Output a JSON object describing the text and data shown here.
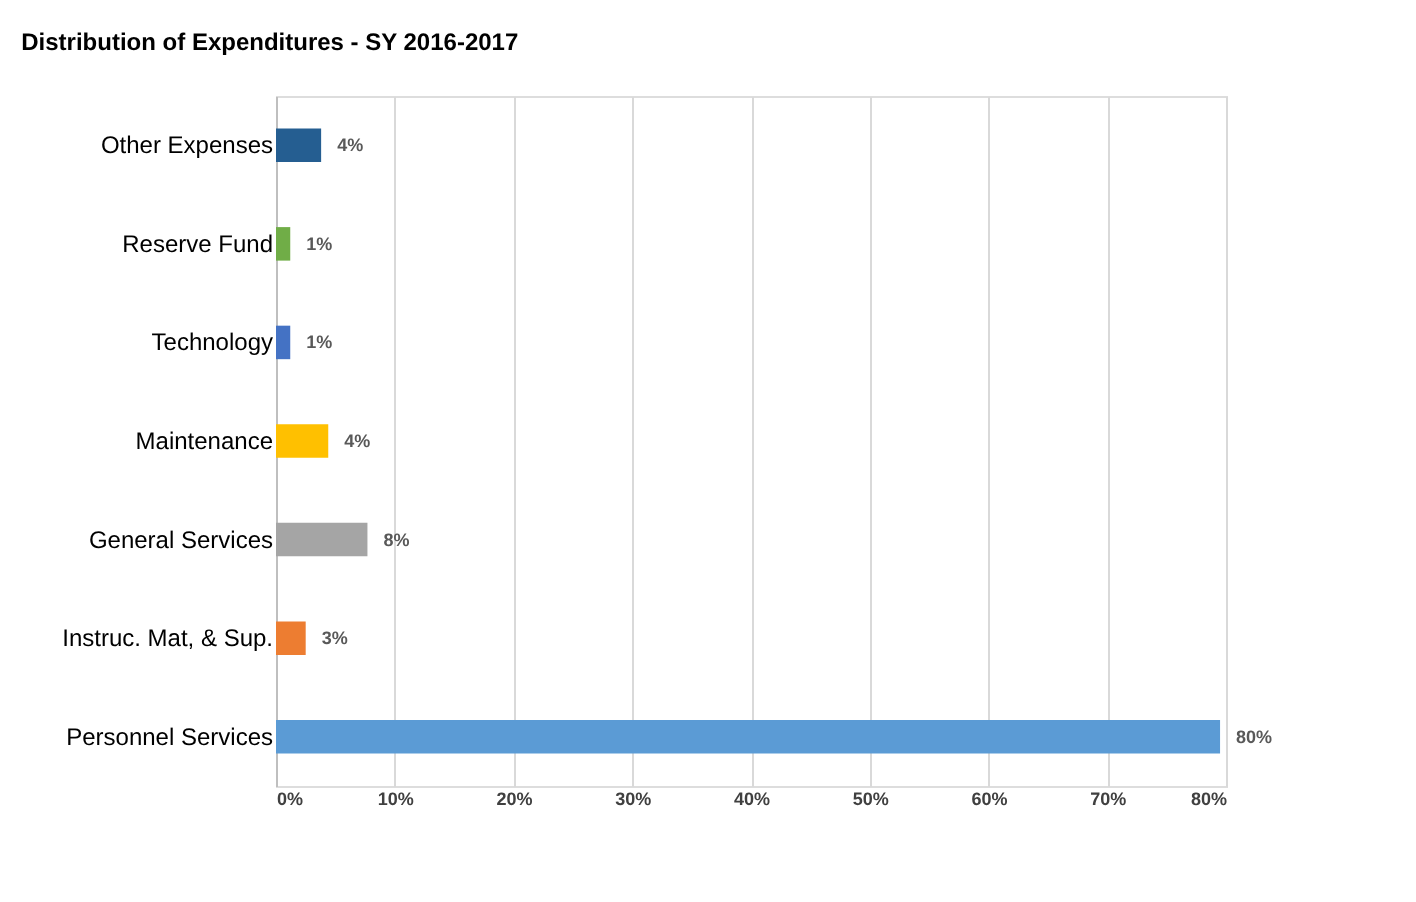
{
  "chart_data": {
    "type": "bar",
    "orientation": "horizontal",
    "title": "Distribution of Expenditures - SY 2016-2017",
    "categories": [
      "Other Expenses",
      "Reserve Fund",
      "Technology",
      "Maintenance",
      "General Services",
      "Instruc. Mat, & Sup.",
      "Personnel Services"
    ],
    "values": [
      3.8,
      1.2,
      1.2,
      4.4,
      7.7,
      2.5,
      79.5
    ],
    "colors": [
      "#255e91",
      "#70ad47",
      "#4472c4",
      "#ffc000",
      "#a5a5a5",
      "#ed7d31",
      "#5b9bd5"
    ],
    "value_labels": [
      "4%",
      "1%",
      "1%",
      "4%",
      "8%",
      "3%",
      "80%"
    ],
    "xlim": [
      0,
      80
    ],
    "xticks": [
      {
        "value": 0,
        "label": "0%"
      },
      {
        "value": 10,
        "label": "10%"
      },
      {
        "value": 20,
        "label": "20%"
      },
      {
        "value": 30,
        "label": "30%"
      },
      {
        "value": 40,
        "label": "40%"
      },
      {
        "value": 50,
        "label": "50%"
      },
      {
        "value": 60,
        "label": "60%"
      },
      {
        "value": 70,
        "label": "70%"
      },
      {
        "value": 80,
        "label": "80%"
      }
    ],
    "grid": "x"
  }
}
